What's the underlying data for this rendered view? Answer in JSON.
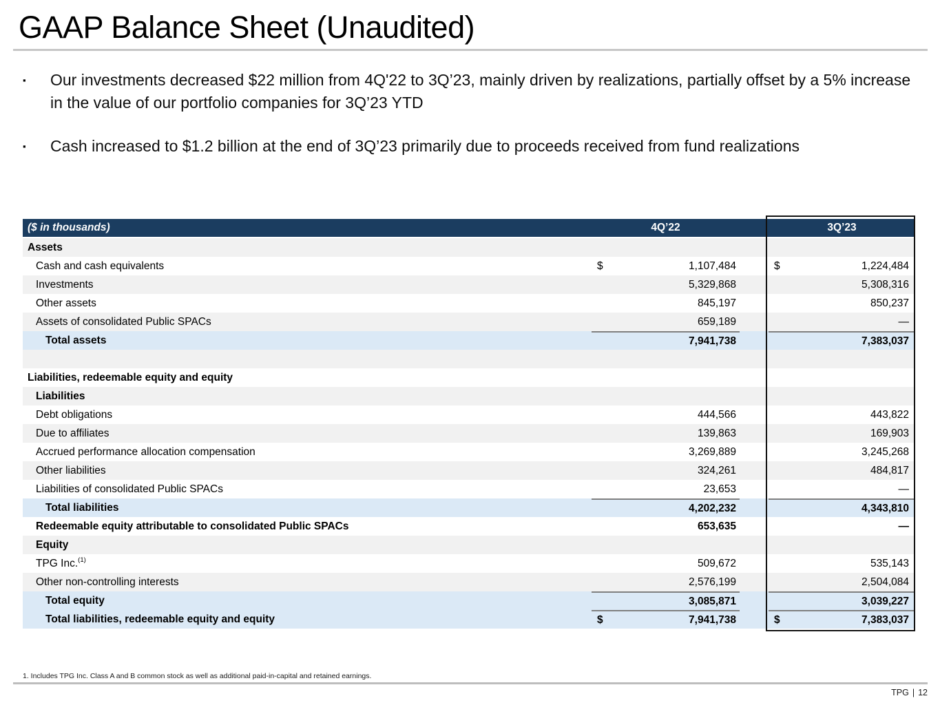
{
  "title": "GAAP Balance Sheet (Unaudited)",
  "bullet_char": "▪",
  "bullets": [
    "Our investments decreased $22 million from 4Q'22 to 3Q’23, mainly driven by realizations, partially offset by a 5% increase in the value of our portfolio companies for 3Q’23 YTD",
    "Cash increased to $1.2 billion at the end of 3Q’23 primarily due to proceeds received from fund realizations"
  ],
  "table": {
    "header": {
      "label": "($ in thousands)",
      "col1": "4Q’22",
      "col2": "3Q’23"
    },
    "rows": [
      {
        "label": "Assets",
        "bg": "gray",
        "bold": true,
        "indent": 0
      },
      {
        "label": "Cash and cash equivalents",
        "bg": "white",
        "indent": 1,
        "d1": "$",
        "v1": "1,107,484",
        "d2": "$",
        "v2": "1,224,484"
      },
      {
        "label": "Investments",
        "bg": "gray",
        "indent": 1,
        "v1": "5,329,868",
        "v2": "5,308,316"
      },
      {
        "label": "Other assets",
        "bg": "white",
        "indent": 1,
        "v1": "845,197",
        "v2": "850,237"
      },
      {
        "label": "Assets of consolidated Public SPACs",
        "bg": "gray",
        "indent": 1,
        "v1": "659,189",
        "v2": "—"
      },
      {
        "label": "Total assets",
        "bg": "blue",
        "bold": true,
        "indent": 2,
        "v1": "7,941,738",
        "v2": "7,383,037",
        "rule": true
      },
      {
        "label": "",
        "bg": "gray",
        "indent": 0
      },
      {
        "label": "Liabilities, redeemable equity and equity",
        "bg": "white",
        "bold": true,
        "indent": 0
      },
      {
        "label": "Liabilities",
        "bg": "gray",
        "bold": true,
        "indent": 1
      },
      {
        "label": "Debt obligations",
        "bg": "white",
        "indent": 1,
        "v1": "444,566",
        "v2": "443,822"
      },
      {
        "label": "Due to affiliates",
        "bg": "gray",
        "indent": 1,
        "v1": "139,863",
        "v2": "169,903"
      },
      {
        "label": "Accrued performance allocation compensation",
        "bg": "white",
        "indent": 1,
        "v1": "3,269,889",
        "v2": "3,245,268"
      },
      {
        "label": "Other liabilities",
        "bg": "gray",
        "indent": 1,
        "v1": "324,261",
        "v2": "484,817"
      },
      {
        "label": "Liabilities of consolidated Public SPACs",
        "bg": "white",
        "indent": 1,
        "v1": "23,653",
        "v2": "—"
      },
      {
        "label": "Total liabilities",
        "bg": "blue",
        "bold": true,
        "indent": 2,
        "v1": "4,202,232",
        "v2": "4,343,810",
        "rule": true
      },
      {
        "label": "Redeemable equity attributable to consolidated Public SPACs",
        "bg": "white",
        "bold": true,
        "indent": 1,
        "v1": "653,635",
        "v2": "—"
      },
      {
        "label": "Equity",
        "bg": "gray",
        "bold": true,
        "indent": 1
      },
      {
        "label": "TPG Inc.",
        "sup": "(1)",
        "bg": "white",
        "indent": 1,
        "v1": "509,672",
        "v2": "535,143"
      },
      {
        "label": "Other non-controlling interests",
        "bg": "gray",
        "indent": 1,
        "v1": "2,576,199",
        "v2": "2,504,084"
      },
      {
        "label": "Total equity",
        "bg": "blue",
        "bold": true,
        "indent": 2,
        "v1": "3,085,871",
        "v2": "3,039,227",
        "rule": true
      },
      {
        "label": "Total liabilities, redeemable equity and equity",
        "bg": "blue",
        "bold": true,
        "indent": 2,
        "d1": "$",
        "v1": "7,941,738",
        "d2": "$",
        "v2": "7,383,037",
        "rule": true
      }
    ]
  },
  "footnote": "1. Includes TPG Inc. Class A and B common stock as well as additional paid-in-capital and retained earnings.",
  "footer": {
    "brand": "TPG",
    "separator": "|",
    "page_number": "12"
  },
  "colors": {
    "header_navy": "#1b3d60",
    "total_row_blue": "#dbe9f6",
    "stripe_gray": "#f1f1f1",
    "subtotal_rule_gray": "#7f7f7f",
    "highlight_box_border": "#111111",
    "divider_gray": "#c6c6c6"
  }
}
